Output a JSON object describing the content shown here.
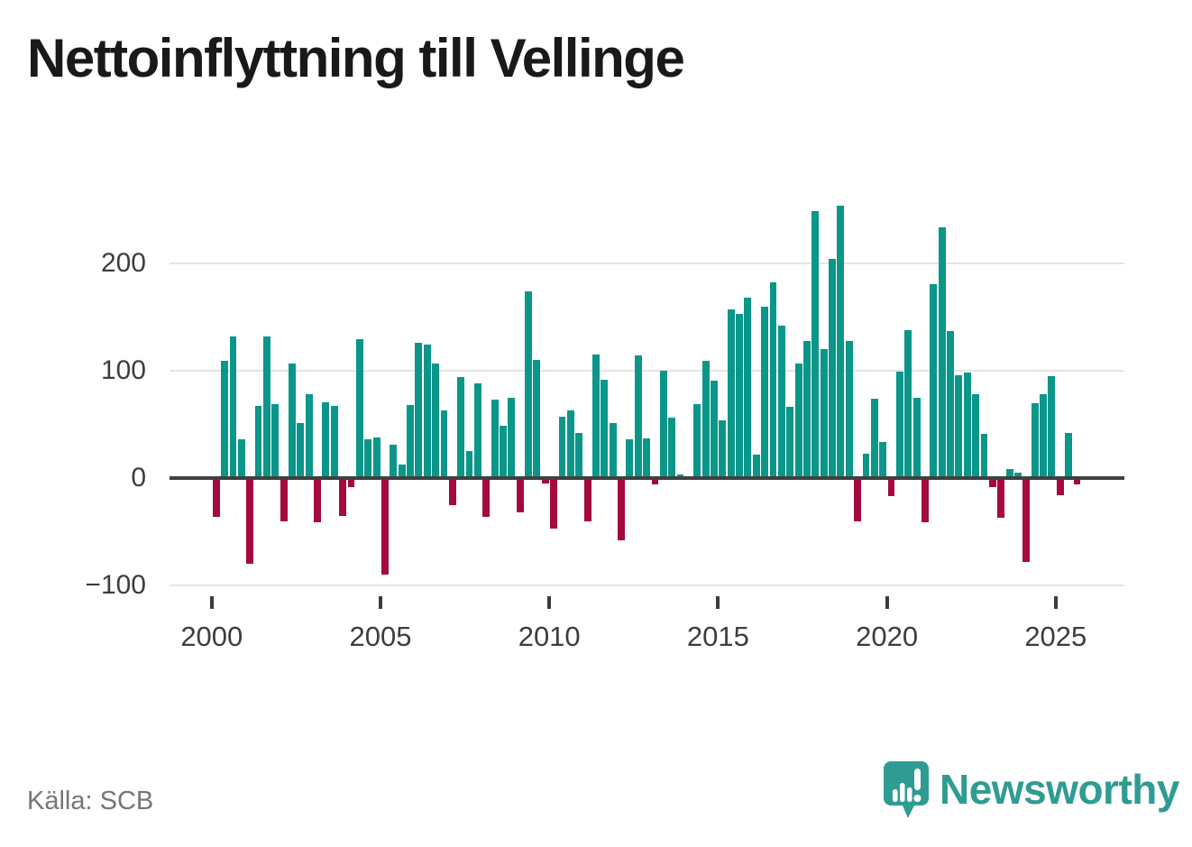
{
  "title": "Nettoinflyttning till Vellinge",
  "source": {
    "label": "Källa: SCB"
  },
  "branding": {
    "name": "Newsworthy",
    "icon": "bar-chart-speech-bubble-icon"
  },
  "colors": {
    "positive_bar": "#0b968a",
    "negative_bar": "#a40a3e",
    "grid": "#e4e4e4",
    "zero_axis": "#3f4040",
    "axis_text": "#3d3d3d",
    "title_text": "#191919",
    "source_text": "#767676",
    "brand_teal": "#2f9c92"
  },
  "chart_data": {
    "type": "bar",
    "title": "Nettoinflyttning till Vellinge",
    "frequency": "quarterly",
    "start_year": 2000,
    "start_quarter": 1,
    "grid_on": true,
    "ylim": [
      -110,
      270
    ],
    "y_ticks": [
      {
        "label": "200",
        "value": 200
      },
      {
        "label": "100",
        "value": 100
      },
      {
        "label": "0",
        "value": 0
      },
      {
        "label": "−100",
        "value": -100
      }
    ],
    "x_ticks": [
      {
        "label": "2000",
        "year": 2000
      },
      {
        "label": "2005",
        "year": 2005
      },
      {
        "label": "2010",
        "year": 2010
      },
      {
        "label": "2015",
        "year": 2015
      },
      {
        "label": "2020",
        "year": 2020
      },
      {
        "label": "2025",
        "year": 2025
      }
    ],
    "values": [
      -36,
      109,
      132,
      36,
      -80,
      67,
      132,
      69,
      -40,
      107,
      51,
      78,
      -41,
      71,
      67,
      -35,
      -8,
      129,
      36,
      38,
      -90,
      31,
      13,
      68,
      126,
      124,
      107,
      63,
      -25,
      94,
      25,
      88,
      -36,
      73,
      49,
      75,
      -32,
      174,
      110,
      -5,
      -47,
      57,
      63,
      42,
      -40,
      115,
      92,
      51,
      -58,
      36,
      114,
      37,
      -6,
      100,
      56,
      3,
      0,
      69,
      109,
      91,
      54,
      157,
      153,
      168,
      22,
      160,
      182,
      142,
      66,
      107,
      128,
      249,
      120,
      204,
      254,
      128,
      -40,
      23,
      74,
      34,
      -17,
      99,
      138,
      75,
      -41,
      181,
      234,
      137,
      96,
      98,
      78,
      41,
      -8,
      -37,
      8,
      5,
      -78,
      70,
      78,
      95,
      -16,
      42,
      -6
    ]
  }
}
